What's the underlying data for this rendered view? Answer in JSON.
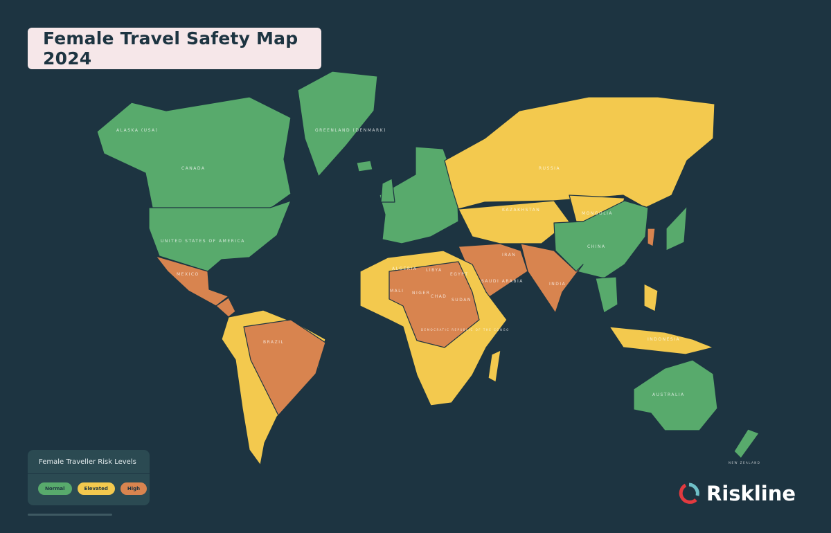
{
  "title": "Female Travel Safety Map 2024",
  "colors": {
    "background": "#1d3441",
    "normal": "#58aa6c",
    "elevated": "#f3c94e",
    "high": "#d8844f",
    "title_box": "#f6e7e9"
  },
  "legend": {
    "title": "Female Traveller Risk Levels",
    "levels": [
      {
        "label": "Normal",
        "color": "#58aa6c"
      },
      {
        "label": "Elevated",
        "color": "#f3c94e"
      },
      {
        "label": "High",
        "color": "#d8844f"
      }
    ]
  },
  "labels": {
    "alaska": "ALASKA (USA)",
    "canada": "CANADA",
    "greenland": "GREENLAND (DENMARK)",
    "usa": "UNITED STATES OF AMERICA",
    "mexico": "MEXICO",
    "brazil": "BRAZIL",
    "russia": "RUSSIA",
    "kazakhstan": "KAZAKHSTAN",
    "mongolia": "MONGOLIA",
    "china": "CHINA",
    "india": "INDIA",
    "iran": "IRAN",
    "saudi": "SAUDI ARABIA",
    "algeria": "ALGERIA",
    "libya": "LIBYA",
    "egypt": "EGYPT",
    "mali": "MALI",
    "niger": "NIGER",
    "chad": "CHAD",
    "sudan": "SUDAN",
    "drc": "DEMOCRATIC REPUBLIC OF THE CONGO",
    "indonesia": "INDONESIA",
    "australia": "AUSTRALIA",
    "new_zealand": "NEW ZEALAND"
  },
  "brand": {
    "name": "Riskline",
    "logo_icon": "riskline-ring-logo"
  }
}
